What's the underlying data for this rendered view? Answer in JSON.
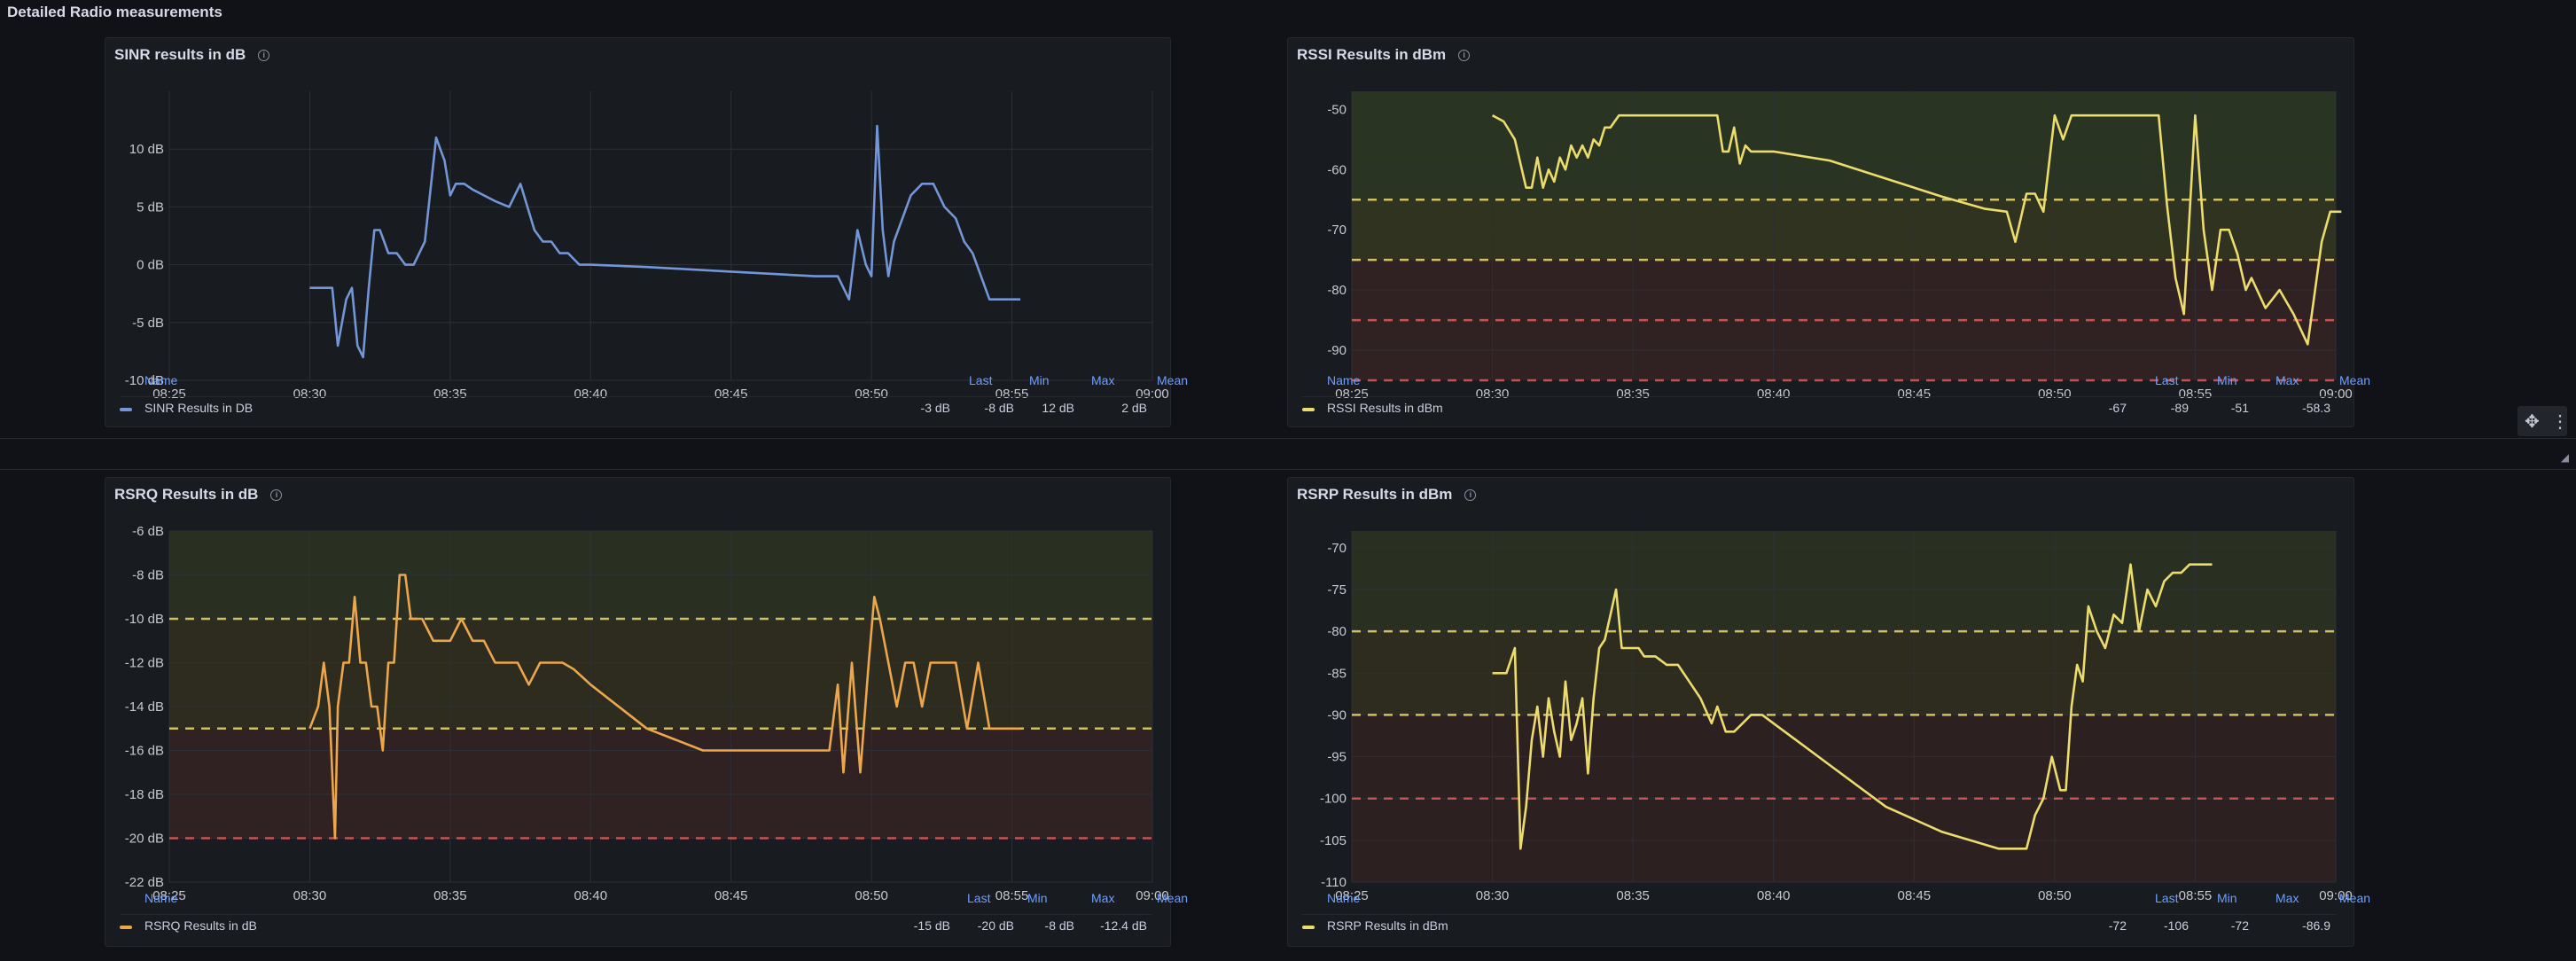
{
  "section": {
    "title": "Detailed Radio measurements"
  },
  "colors": {
    "blue": "#7396d8",
    "yellow": "#ecdb6d",
    "orange": "#eca64c",
    "axis": "#c7c7d1",
    "grid": "#2c3036"
  },
  "toolbar": {
    "move_icon": "move-icon",
    "menu_icon": "kebab-menu-icon"
  },
  "chart_data": [
    {
      "id": "sinr",
      "type": "line",
      "title": "SINR results in dB",
      "unit": " dB",
      "xlabel": "",
      "ylabel": "",
      "ylim": [
        -10,
        15
      ],
      "y_ticks": [
        10,
        5,
        0,
        -5,
        -10
      ],
      "y_tick_labels": [
        "10 dB",
        "5 dB",
        "0 dB",
        "-5 dB",
        "-10 dB"
      ],
      "x_ticks": [
        "08:25",
        "08:30",
        "08:35",
        "08:40",
        "08:45",
        "08:50",
        "08:55",
        "09:00"
      ],
      "thresholds": [],
      "series": [
        {
          "name": "SINR Results in DB",
          "color": "#7396d8",
          "x": [
            30,
            30.8,
            31,
            31.3,
            31.5,
            31.7,
            31.9,
            32.1,
            32.3,
            32.5,
            32.8,
            33.1,
            33.4,
            33.7,
            34.1,
            34.5,
            34.8,
            35.0,
            35.2,
            35.5,
            35.8,
            36.2,
            36.6,
            37.1,
            37.5,
            38.0,
            38.3,
            38.6,
            38.9,
            39.2,
            39.6,
            40,
            42,
            45,
            48,
            48.8,
            49.2,
            49.5,
            49.8,
            50,
            50.2,
            50.4,
            50.6,
            50.8,
            51.1,
            51.4,
            51.8,
            52.2,
            52.6,
            53.0,
            53.3,
            53.6,
            53.9,
            54.2,
            54.6,
            55.0,
            55.3
          ],
          "y": [
            -2,
            -2,
            -7,
            -3,
            -2,
            -7,
            -8,
            -2,
            3,
            3,
            1,
            1,
            0,
            0,
            2,
            11,
            9,
            6,
            7,
            7,
            6.5,
            6,
            5.5,
            5,
            7,
            3,
            2,
            2,
            1,
            1,
            0,
            0,
            -0.2,
            -0.6,
            -1,
            -1,
            -3,
            3,
            0,
            -1,
            12,
            3,
            -1,
            2,
            4,
            6,
            7,
            7,
            5,
            4,
            2,
            1,
            -1,
            -3,
            -3,
            -3,
            -3
          ]
        }
      ],
      "legend": {
        "headers": [
          "Name",
          "Last",
          "Min",
          "Max",
          "Mean"
        ],
        "last": "-3 dB",
        "min": "-8 dB",
        "max": "12 dB",
        "mean": "2 dB"
      }
    },
    {
      "id": "rssi",
      "type": "line",
      "title": "RSSI Results in dBm",
      "unit": "",
      "xlabel": "",
      "ylabel": "",
      "ylim": [
        -95,
        -47
      ],
      "y_ticks": [
        -50,
        -60,
        -70,
        -80,
        -90
      ],
      "y_tick_labels": [
        "-50",
        "-60",
        "-70",
        "-80",
        "-90"
      ],
      "x_ticks": [
        "08:25",
        "08:30",
        "08:35",
        "08:40",
        "08:45",
        "08:50",
        "08:55",
        "09:00"
      ],
      "thresholds": [
        {
          "value": -65,
          "color": "#ecdb6d"
        },
        {
          "value": -75,
          "color": "#ecdb6d"
        },
        {
          "value": -85,
          "color": "#e05a5a"
        },
        {
          "value": -95,
          "color": "#e05a5a"
        }
      ],
      "bands": [
        {
          "from": -47,
          "to": -65,
          "color": "#6b8d2f"
        },
        {
          "from": -65,
          "to": -75,
          "color": "#8a8a1e"
        },
        {
          "from": -75,
          "to": -95,
          "color": "#8a3a2e"
        }
      ],
      "series": [
        {
          "name": "RSSI Results in dBm",
          "color": "#ecdb6d",
          "x": [
            30,
            30.4,
            30.8,
            31.2,
            31.4,
            31.6,
            31.8,
            32,
            32.2,
            32.4,
            32.6,
            32.8,
            33,
            33.2,
            33.4,
            33.6,
            33.8,
            34,
            34.2,
            34.5,
            35,
            36,
            37,
            38,
            38.2,
            38.4,
            38.6,
            38.8,
            39,
            39.2,
            39.6,
            40,
            42,
            44,
            46,
            47.5,
            48.3,
            48.6,
            49,
            49.3,
            49.6,
            50.0,
            50.3,
            50.6,
            51,
            52,
            53,
            53.4,
            53.7,
            54,
            54.3,
            54.6,
            55,
            55.3,
            55.6,
            55.9,
            56.2,
            56.5,
            56.8,
            57,
            57.5,
            58,
            58.5,
            59,
            59.5,
            59.8,
            60.2
          ],
          "y": [
            -51,
            -52,
            -55,
            -63,
            -63,
            -58,
            -63,
            -60,
            -62,
            -58,
            -60,
            -56,
            -58,
            -56,
            -58,
            -55,
            -56,
            -53,
            -53,
            -51,
            -51,
            -51,
            -51,
            -51,
            -57,
            -57,
            -53,
            -59,
            -56,
            -57,
            -57,
            -57,
            -58.5,
            -61.5,
            -64.5,
            -66.5,
            -67,
            -72,
            -64,
            -64,
            -67,
            -51,
            -55,
            -51,
            -51,
            -51,
            -51,
            -51,
            -51,
            -66,
            -78,
            -84,
            -51,
            -70,
            -80,
            -70,
            -70,
            -74,
            -80,
            -78,
            -83,
            -80,
            -84,
            -89,
            -72,
            -67,
            -67
          ]
        }
      ],
      "legend": {
        "headers": [
          "Name",
          "Last",
          "Min",
          "Max",
          "Mean"
        ],
        "last": "-67",
        "min": "-89",
        "max": "-51",
        "mean": "-58.3"
      }
    },
    {
      "id": "rsrq",
      "type": "line",
      "title": "RSRQ Results in dB",
      "unit": " dB",
      "xlabel": "",
      "ylabel": "",
      "ylim": [
        -22,
        -6
      ],
      "y_ticks": [
        -6,
        -8,
        -10,
        -12,
        -14,
        -16,
        -18,
        -20,
        -22
      ],
      "y_tick_labels": [
        "-6 dB",
        "-8 dB",
        "-10 dB",
        "-12 dB",
        "-14 dB",
        "-16 dB",
        "-18 dB",
        "-20 dB",
        "-22 dB"
      ],
      "x_ticks": [
        "08:25",
        "08:30",
        "08:35",
        "08:40",
        "08:45",
        "08:50",
        "08:55",
        "09:00"
      ],
      "thresholds": [
        {
          "value": -10,
          "color": "#ecdb6d"
        },
        {
          "value": -15,
          "color": "#ecdb6d"
        },
        {
          "value": -20,
          "color": "#e05a5a"
        }
      ],
      "bands": [
        {
          "from": -6,
          "to": -10,
          "color": "#6b7d2f"
        },
        {
          "from": -10,
          "to": -15,
          "color": "#7c6a22"
        },
        {
          "from": -15,
          "to": -20,
          "color": "#8a3a2e"
        }
      ],
      "series": [
        {
          "name": "RSRQ Results in dB",
          "color": "#eca64c",
          "x": [
            30,
            30.3,
            30.5,
            30.7,
            30.9,
            31.0,
            31.2,
            31.4,
            31.6,
            31.8,
            32,
            32.2,
            32.4,
            32.6,
            32.8,
            33,
            33.2,
            33.4,
            33.6,
            33.8,
            34,
            34.2,
            34.4,
            34.6,
            35,
            35.4,
            35.8,
            36.2,
            36.6,
            37,
            37.4,
            37.8,
            38.2,
            38.6,
            39,
            39.4,
            40,
            42,
            44,
            46,
            48.5,
            48.8,
            49,
            49.3,
            49.6,
            49.9,
            50.1,
            50.3,
            50.6,
            50.9,
            51.2,
            51.5,
            51.8,
            52.1,
            52.4,
            52.7,
            53,
            53.4,
            53.8,
            54.2,
            54.6,
            55,
            55.3
          ],
          "y": [
            -15,
            -14,
            -12,
            -14,
            -20,
            -14,
            -12,
            -12,
            -9,
            -12,
            -12,
            -14,
            -14,
            -16,
            -12,
            -12,
            -8,
            -8,
            -10,
            -10,
            -10,
            -10.5,
            -11,
            -11,
            -11,
            -10,
            -11,
            -11,
            -12,
            -12,
            -12,
            -13,
            -12,
            -12,
            -12,
            -12.3,
            -13,
            -15,
            -16,
            -16,
            -16,
            -13,
            -17,
            -12,
            -17,
            -12,
            -9,
            -10,
            -12,
            -14,
            -12,
            -12,
            -14,
            -12,
            -12,
            -12,
            -12,
            -15,
            -12,
            -15,
            -15,
            -15,
            -15
          ]
        }
      ],
      "legend": {
        "headers": [
          "Name",
          "Last",
          "Min",
          "Max",
          "Mean"
        ],
        "last": "-15 dB",
        "min": "-20 dB",
        "max": "-8 dB",
        "mean": "-12.4 dB"
      }
    },
    {
      "id": "rsrp",
      "type": "line",
      "title": "RSRP Results in dBm",
      "unit": "",
      "xlabel": "",
      "ylabel": "",
      "ylim": [
        -110,
        -68
      ],
      "y_ticks": [
        -70,
        -75,
        -80,
        -85,
        -90,
        -95,
        -100,
        -105,
        -110
      ],
      "y_tick_labels": [
        "-70",
        "-75",
        "-80",
        "-85",
        "-90",
        "-95",
        "-100",
        "-105",
        "-110"
      ],
      "x_ticks": [
        "08:25",
        "08:30",
        "08:35",
        "08:40",
        "08:45",
        "08:50",
        "08:55",
        "09:00"
      ],
      "thresholds": [
        {
          "value": -80,
          "color": "#ecdb6d"
        },
        {
          "value": -90,
          "color": "#ecdb6d"
        },
        {
          "value": -100,
          "color": "#e05a5a"
        }
      ],
      "bands": [
        {
          "from": -68,
          "to": -80,
          "color": "#6b7d2f"
        },
        {
          "from": -80,
          "to": -90,
          "color": "#7c6a22"
        },
        {
          "from": -90,
          "to": -110,
          "color": "#7a3428"
        }
      ],
      "series": [
        {
          "name": "RSRP Results in dBm",
          "color": "#ecdb6d",
          "x": [
            30,
            30.5,
            30.8,
            31.0,
            31.2,
            31.4,
            31.6,
            31.8,
            32.0,
            32.2,
            32.4,
            32.6,
            32.8,
            33.0,
            33.2,
            33.4,
            33.6,
            33.8,
            34.0,
            34.2,
            34.4,
            34.6,
            34.8,
            35.0,
            35.2,
            35.4,
            35.8,
            36.2,
            36.6,
            37,
            37.4,
            37.8,
            38.0,
            38.3,
            38.6,
            38.9,
            39.2,
            39.6,
            40,
            42,
            44,
            46,
            48,
            49,
            49.3,
            49.6,
            49.9,
            50.2,
            50.4,
            50.6,
            50.8,
            51.0,
            51.2,
            51.5,
            51.8,
            52.1,
            52.4,
            52.7,
            53.0,
            53.3,
            53.6,
            53.9,
            54.2,
            54.5,
            54.8,
            55.2,
            55.6
          ],
          "y": [
            -85,
            -85,
            -82,
            -106,
            -101,
            -93,
            -89,
            -95,
            -88,
            -92,
            -95,
            -86,
            -93,
            -91,
            -88,
            -97,
            -88,
            -82,
            -81,
            -78,
            -75,
            -82,
            -82,
            -82,
            -82,
            -83,
            -83,
            -84,
            -84,
            -86,
            -88,
            -91,
            -89,
            -92,
            -92,
            -91,
            -90,
            -90,
            -91,
            -96,
            -101,
            -104,
            -106,
            -106,
            -102,
            -100,
            -95,
            -99,
            -99,
            -89,
            -84,
            -86,
            -77,
            -80,
            -82,
            -78,
            -79,
            -72,
            -80,
            -75,
            -77,
            -74,
            -73,
            -73,
            -72,
            -72,
            -72
          ]
        }
      ],
      "legend": {
        "headers": [
          "Name",
          "Last",
          "Min",
          "Max",
          "Mean"
        ],
        "last": "-72",
        "min": "-106",
        "max": "-72",
        "mean": "-86.9"
      }
    }
  ]
}
